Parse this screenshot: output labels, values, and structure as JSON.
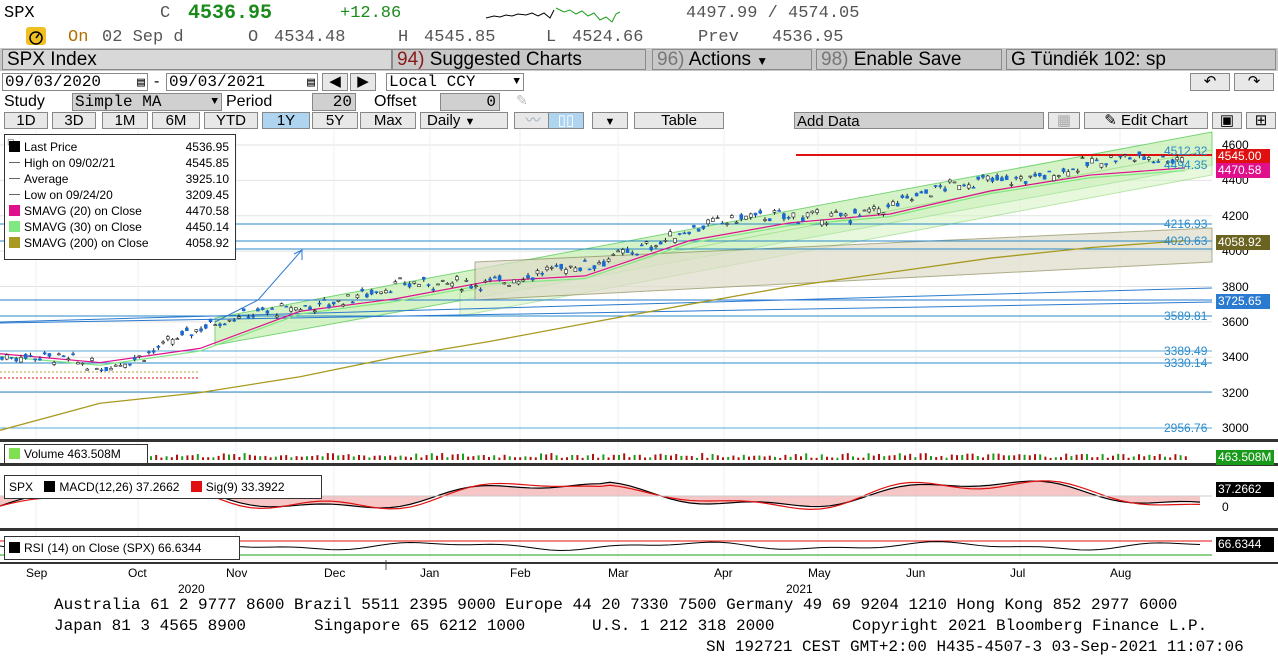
{
  "quote": {
    "ticker": "SPX",
    "c_label": "C",
    "last": "4536.95",
    "change": "+12.86",
    "range": "4497.99 / 4574.05",
    "on_label": "On",
    "date": "02 Sep d",
    "open_label": "O",
    "open": "4534.48",
    "high_label": "H",
    "high": "4545.85",
    "low_label": "L",
    "low": "4524.66",
    "prev_label": "Prev",
    "prev": "4536.95"
  },
  "title_bar": {
    "security": "SPX Index",
    "suggested_num": "94)",
    "suggested": "Suggested Charts",
    "actions_num": "96)",
    "actions": "Actions",
    "enable_num": "98)",
    "enable": "Enable Save",
    "chart_name": "G Tündiék 102: sp"
  },
  "controls": {
    "start_date": "09/03/2020",
    "end_date": "09/03/2021",
    "dash": "-",
    "currency": "Local CCY",
    "study_label": "Study",
    "study_value": "Simple MA",
    "period_label": "Period",
    "period_value": "20",
    "offset_label": "Offset",
    "offset_value": "0",
    "periods": [
      "1D",
      "3D",
      "1M",
      "6M",
      "YTD",
      "1Y",
      "5Y",
      "Max"
    ],
    "active_period": "1Y",
    "frequency": "Daily",
    "table": "Table",
    "add_data": "Add Data",
    "edit_chart": "Edit Chart"
  },
  "legend": {
    "rows": [
      {
        "label": "Last Price",
        "value": "4536.95",
        "color": "#000000"
      },
      {
        "label": "High on 09/02/21",
        "value": "4545.85",
        "color": "#666666"
      },
      {
        "label": "Average",
        "value": "3925.10",
        "color": "#666666"
      },
      {
        "label": "Low on 09/24/20",
        "value": "3209.45",
        "color": "#666666"
      },
      {
        "label": "SMAVG (20)  on Close",
        "value": "4470.58",
        "color": "#e0108c"
      },
      {
        "label": "SMAVG (30)  on Close",
        "value": "4450.14",
        "color": "#80e880"
      },
      {
        "label": "SMAVG (200)  on Close",
        "value": "4058.92",
        "color": "#a89a20"
      }
    ]
  },
  "axis": {
    "price_ticks": [
      "4600",
      "4400",
      "4200",
      "4000",
      "3800",
      "3600",
      "3400",
      "3200",
      "3000"
    ],
    "tags": [
      {
        "text": "4545.00",
        "color": "#e01010"
      },
      {
        "text": "4470.58",
        "color": "#e0108c"
      },
      {
        "text": "4058.92",
        "color": "#6a6420"
      },
      {
        "text": "3725.65",
        "color": "#2a7ad0"
      }
    ],
    "level_labels": [
      "4512.32",
      "4494.35",
      "4216.93",
      "4020.63",
      "3589.81",
      "3389.49",
      "3330.14",
      "2956.76"
    ],
    "volume_tag": "463.508M",
    "macd_tag": "37.2662",
    "macd_zero": "0",
    "rsi_tag": "66.6344"
  },
  "panels": {
    "volume_label": "Volume  463.508M",
    "macd_ticker": "SPX",
    "macd_label": "MACD(12,26) 37.2662",
    "sig_label": "Sig(9) 33.3922",
    "rsi_label": "RSI (14)  on Close (SPX) 66.6344"
  },
  "x_axis": {
    "months": [
      "Sep",
      "Oct",
      "Nov",
      "Dec",
      "Jan",
      "Feb",
      "Mar",
      "Apr",
      "May",
      "Jun",
      "Jul",
      "Aug"
    ],
    "year_2020": "2020",
    "year_2021": "2021"
  },
  "footer": {
    "line1": "Australia 61 2 9777 8600 Brazil 5511 2395 9000 Europe 44 20 7330 7500 Germany 49 69 9204 1210 Hong Kong 852 2977 6000",
    "line2a": "Japan 81 3 4565 8900",
    "line2b": "Singapore 65 6212 1000",
    "line2c": "U.S. 1 212 318 2000",
    "line2d": "Copyright 2021 Bloomberg Finance L.P.",
    "line3": "SN 192721 CEST GMT+2:00 H435-4507-3 03-Sep-2021 11:07:06"
  },
  "chart_data": {
    "type": "line",
    "x": [
      "2020-09",
      "2020-10",
      "2020-11",
      "2020-12",
      "2021-01",
      "2021-02",
      "2021-03",
      "2021-04",
      "2021-05",
      "2021-06",
      "2021-07",
      "2021-08",
      "2021-09"
    ],
    "series": [
      {
        "name": "Last Price",
        "values": [
          3400,
          3350,
          3550,
          3700,
          3780,
          3850,
          3900,
          4150,
          4180,
          4250,
          4400,
          4480,
          4537
        ]
      },
      {
        "name": "SMAVG (20)",
        "values": [
          3420,
          3370,
          3450,
          3660,
          3730,
          3830,
          3860,
          4060,
          4160,
          4210,
          4340,
          4430,
          4470.58
        ]
      },
      {
        "name": "SMAVG (200)",
        "values": [
          3100,
          3140,
          3200,
          3290,
          3400,
          3490,
          3590,
          3700,
          3800,
          3880,
          3960,
          4020,
          4058.92
        ]
      }
    ],
    "ylim": [
      2950,
      4650
    ],
    "grid": true,
    "legend": "top-left"
  }
}
